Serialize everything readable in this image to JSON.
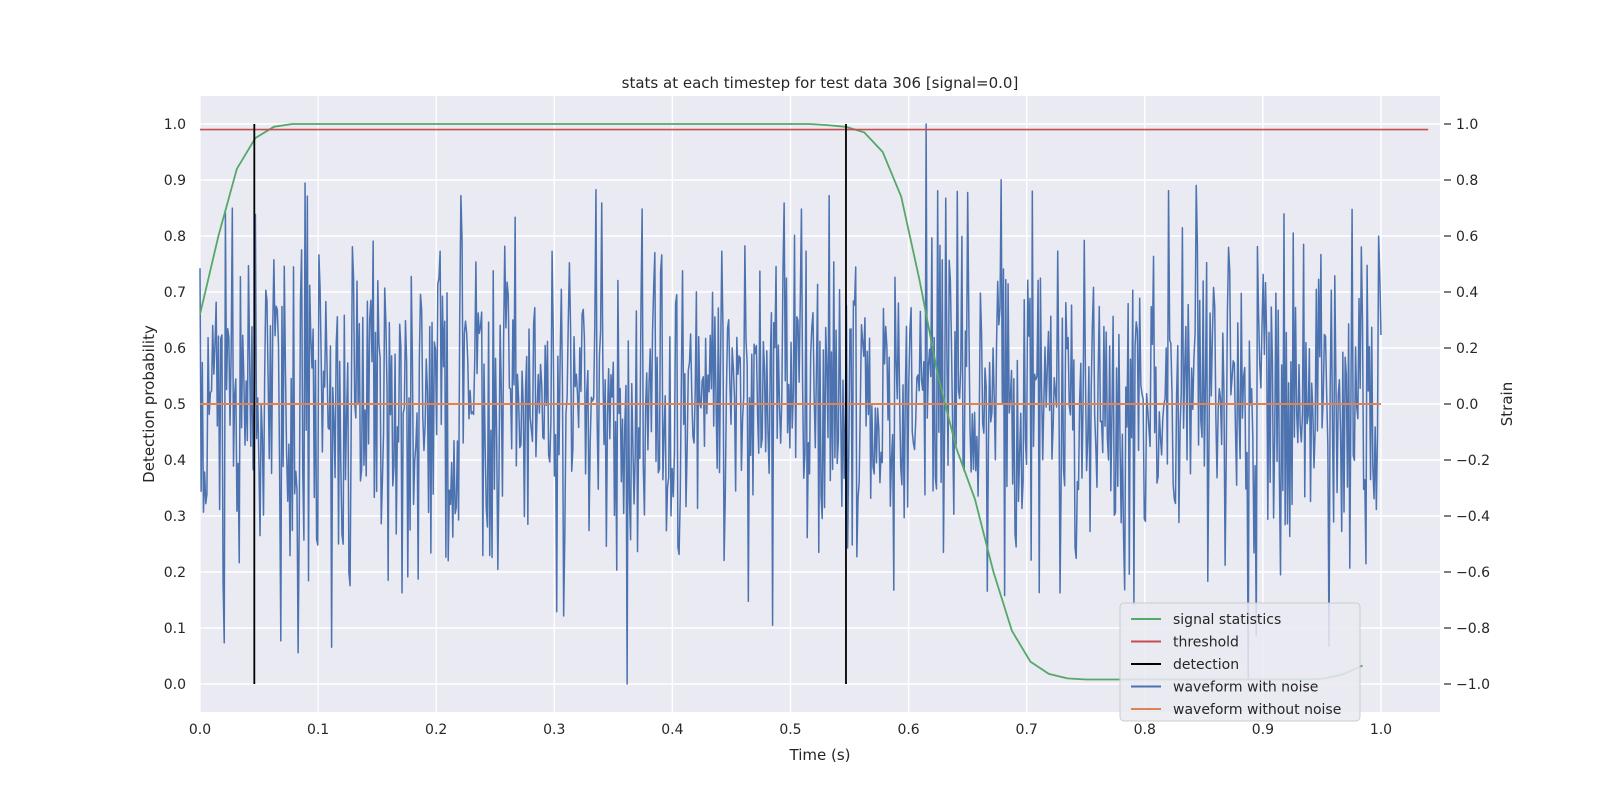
{
  "chart_data": {
    "type": "line",
    "title": "stats at each timestep for test data 306 [signal=0.0]",
    "xlabel": "Time (s)",
    "ylabel_left": "Detection probability",
    "ylabel_right": "Strain",
    "xlim": [
      0.0,
      1.05
    ],
    "ylim_left": [
      -0.05,
      1.05
    ],
    "ylim_right": [
      -1.1,
      1.1
    ],
    "x_ticks": [
      0.0,
      0.1,
      0.2,
      0.3,
      0.4,
      0.5,
      0.6,
      0.7,
      0.8,
      0.9,
      1.0
    ],
    "x_tick_labels": [
      "0.0",
      "0.1",
      "0.2",
      "0.3",
      "0.4",
      "0.5",
      "0.6",
      "0.7",
      "0.8",
      "0.9",
      "1.0"
    ],
    "y_ticks_left": [
      0.0,
      0.1,
      0.2,
      0.3,
      0.4,
      0.5,
      0.6,
      0.7,
      0.8,
      0.9,
      1.0
    ],
    "y_tick_labels_left": [
      "0.0",
      "0.1",
      "0.2",
      "0.3",
      "0.4",
      "0.5",
      "0.6",
      "0.7",
      "0.8",
      "0.9",
      "1.0"
    ],
    "y_ticks_right": [
      -1.0,
      -0.8,
      -0.6,
      -0.4,
      -0.2,
      0.0,
      0.2,
      0.4,
      0.6,
      0.8,
      1.0
    ],
    "y_tick_labels_right": [
      "−1.0",
      "−0.8",
      "−0.6",
      "−0.4",
      "−0.2",
      "0.0",
      "0.2",
      "0.4",
      "0.6",
      "0.8",
      "1.0"
    ],
    "grid": true,
    "legend_position": "lower-right",
    "colors": {
      "background": "#eaeaf2",
      "grid": "#ffffff",
      "signal_statistics": "#55a868",
      "threshold": "#c44e52",
      "detection": "#000000",
      "waveform_with_noise": "#4c72b0",
      "waveform_without_noise": "#dd8452"
    },
    "series": [
      {
        "name": "signal statistics",
        "axis": "left",
        "x": [
          0.0,
          0.0156,
          0.0312,
          0.0469,
          0.0625,
          0.0781,
          0.0938,
          0.1094,
          0.125,
          0.1406,
          0.1562,
          0.1719,
          0.1875,
          0.2031,
          0.2188,
          0.2344,
          0.25,
          0.2656,
          0.2812,
          0.2969,
          0.3125,
          0.3281,
          0.3438,
          0.3594,
          0.375,
          0.3906,
          0.4062,
          0.4219,
          0.4375,
          0.4531,
          0.4688,
          0.4844,
          0.5,
          0.5156,
          0.5312,
          0.5469,
          0.5625,
          0.5781,
          0.5938,
          0.6094,
          0.625,
          0.6406,
          0.6562,
          0.6719,
          0.6875,
          0.7031,
          0.7188,
          0.7344,
          0.75,
          0.7656,
          0.7812,
          0.7969,
          0.8125,
          0.8281,
          0.8438,
          0.8594,
          0.875,
          0.8906,
          0.9062,
          0.9219,
          0.9375,
          0.9531,
          0.9688,
          0.9844
        ],
        "y": [
          0.66,
          0.8,
          0.92,
          0.975,
          0.995,
          1.0,
          1.0,
          1.0,
          1.0,
          1.0,
          1.0,
          1.0,
          1.0,
          1.0,
          1.0,
          1.0,
          1.0,
          1.0,
          1.0,
          1.0,
          1.0,
          1.0,
          1.0,
          1.0,
          1.0,
          1.0,
          1.0,
          1.0,
          1.0,
          1.0,
          1.0,
          1.0,
          1.0,
          1.0,
          0.998,
          0.995,
          0.985,
          0.95,
          0.87,
          0.72,
          0.55,
          0.42,
          0.33,
          0.2,
          0.095,
          0.04,
          0.018,
          0.01,
          0.008,
          0.008,
          0.008,
          0.008,
          0.008,
          0.008,
          0.008,
          0.008,
          0.008,
          0.008,
          0.008,
          0.008,
          0.008,
          0.01,
          0.018,
          0.033
        ]
      },
      {
        "name": "threshold",
        "axis": "left",
        "x": [
          0.0,
          1.04
        ],
        "y": [
          0.99,
          0.99
        ]
      },
      {
        "name": "detection",
        "axis": "left",
        "segments": [
          {
            "x": 0.046,
            "y": [
              0.0,
              1.0
            ]
          },
          {
            "x": 0.547,
            "y": [
              0.0,
              1.0
            ]
          }
        ]
      },
      {
        "name": "waveform with noise",
        "axis": "right",
        "x_range": [
          0.0,
          1.0
        ],
        "n_points": 1024,
        "min": -1.0,
        "max": 1.0,
        "spread": 0.3
      },
      {
        "name": "waveform without noise",
        "axis": "right",
        "x": [
          0.0,
          1.0
        ],
        "y": [
          0.0,
          0.0
        ]
      }
    ]
  }
}
